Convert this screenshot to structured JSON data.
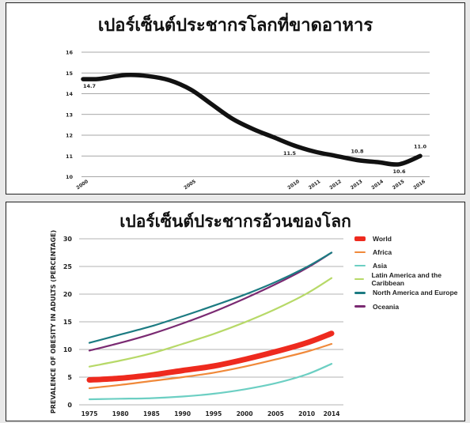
{
  "chart_data": [
    {
      "type": "line",
      "title": "เปอร์เซ็นต์ประชากรโลกที่ขาดอาหาร",
      "xlabel": "",
      "ylabel": "",
      "ylim": [
        10,
        16
      ],
      "y_ticks": [
        "10",
        "11",
        "12",
        "13",
        "14",
        "15",
        "16"
      ],
      "x_ticks": [
        "2000",
        "2005",
        "2010",
        "2011",
        "2012",
        "2013",
        "2014",
        "2015",
        "2016"
      ],
      "grid": true,
      "series": [
        {
          "x": [
            2000,
            2000.6,
            2001,
            2002,
            2003,
            2004,
            2005,
            2006,
            2007,
            2008,
            2009,
            2010,
            2011,
            2012,
            2013,
            2014,
            2015,
            2016
          ],
          "values": [
            14.7,
            14.7,
            14.75,
            14.9,
            14.85,
            14.65,
            14.2,
            13.5,
            12.8,
            12.3,
            11.9,
            11.5,
            11.2,
            11.0,
            10.8,
            10.7,
            10.6,
            11.0
          ],
          "color": "#111111"
        }
      ],
      "data_labels": [
        {
          "x": 2000,
          "y": 14.7,
          "text": "14.7"
        },
        {
          "x": 2010,
          "y": 11.5,
          "text": "11.5"
        },
        {
          "x": 2013,
          "y": 10.8,
          "text": "10.8"
        },
        {
          "x": 2015,
          "y": 10.6,
          "text": "10.6"
        },
        {
          "x": 2016,
          "y": 11.0,
          "text": "11.0"
        }
      ]
    },
    {
      "type": "line",
      "title": "เปอร์เซ็นต์ประชากรอ้วนของโลก",
      "xlabel": "",
      "ylabel": "PREVALENCE OF OBESITY IN ADULTS (PERCENTAGE)",
      "ylim": [
        0,
        30
      ],
      "y_ticks": [
        "0",
        "5",
        "10",
        "15",
        "20",
        "25",
        "30"
      ],
      "x": [
        1975,
        1980,
        1985,
        1990,
        1995,
        2000,
        2005,
        2010,
        2014
      ],
      "x_ticks": [
        "1975",
        "1980",
        "1985",
        "1990",
        "1995",
        "2000",
        "2005",
        "2010",
        "2014"
      ],
      "grid": true,
      "legend": "right",
      "series": [
        {
          "name": "World",
          "color": "#ee2a1e",
          "values": [
            4.5,
            4.8,
            5.4,
            6.2,
            7.0,
            8.2,
            9.6,
            11.2,
            12.9
          ]
        },
        {
          "name": "Africa",
          "color": "#f0893a",
          "values": [
            3.0,
            3.6,
            4.3,
            5.0,
            5.8,
            6.9,
            8.2,
            9.6,
            11.0
          ]
        },
        {
          "name": "Asia",
          "color": "#6ccfc3",
          "values": [
            1.0,
            1.1,
            1.2,
            1.5,
            2.0,
            2.8,
            3.9,
            5.5,
            7.4
          ]
        },
        {
          "name": "Latin America and the Caribbean",
          "color": "#b7d968",
          "values": [
            6.9,
            8.0,
            9.3,
            11.0,
            12.8,
            14.9,
            17.3,
            20.1,
            22.9
          ]
        },
        {
          "name": "North America and Europe",
          "color": "#1c7b82",
          "values": [
            11.2,
            12.7,
            14.2,
            16.0,
            17.9,
            19.9,
            22.2,
            24.9,
            27.5
          ]
        },
        {
          "name": "Oceania",
          "color": "#7a2a72",
          "values": [
            9.8,
            11.2,
            12.8,
            14.7,
            16.8,
            19.2,
            21.8,
            24.7,
            27.5
          ]
        }
      ]
    }
  ]
}
